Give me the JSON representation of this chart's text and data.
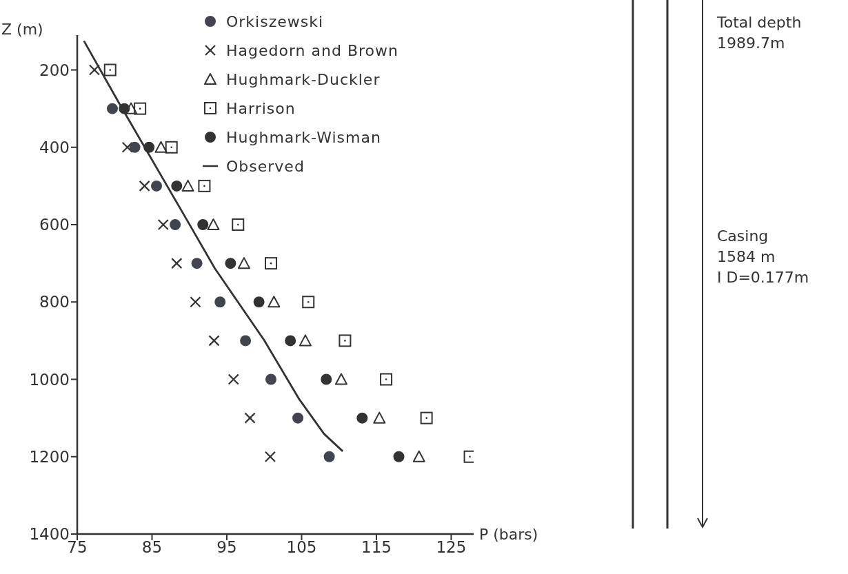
{
  "chart_data": {
    "type": "scatter",
    "xlabel": "P (bars)",
    "ylabel": "Z (m)",
    "xlim": [
      75,
      128
    ],
    "xticks": [
      75,
      85,
      95,
      105,
      115,
      125
    ],
    "ylim": [
      1400,
      110
    ],
    "yticks": [
      200,
      400,
      600,
      800,
      1000,
      1200,
      1400
    ],
    "legend": "top right",
    "series": [
      {
        "name": "Orkiszewski",
        "marker": "circle",
        "color": "#404550",
        "x": [
          79.7,
          82.7,
          85.6,
          88.1,
          91.0,
          94.1,
          97.5,
          100.9,
          104.5,
          108.7
        ],
        "values": [
          300,
          400,
          500,
          600,
          700,
          800,
          900,
          1000,
          1100,
          1200
        ]
      },
      {
        "name": "Hagedorn and Brown",
        "marker": "cross",
        "color": "#333333",
        "x": [
          77.3,
          81.7,
          84.0,
          86.5,
          88.3,
          90.8,
          93.3,
          95.9,
          98.1,
          100.8
        ],
        "values": [
          200,
          400,
          500,
          600,
          700,
          800,
          900,
          1000,
          1100,
          1200
        ]
      },
      {
        "name": "Hughmark-Duckler",
        "marker": "triangle",
        "color": "#333333",
        "x": [
          82.2,
          86.2,
          89.8,
          93.2,
          97.3,
          101.3,
          105.5,
          110.3,
          115.4,
          120.7
        ],
        "values": [
          300,
          400,
          500,
          600,
          700,
          800,
          900,
          1000,
          1100,
          1200
        ]
      },
      {
        "name": "Harrison",
        "marker": "square",
        "color": "#333333",
        "x": [
          79.4,
          83.4,
          87.6,
          92.0,
          96.5,
          100.9,
          105.9,
          110.8,
          116.3,
          121.7,
          127.5
        ],
        "values": [
          200,
          300,
          400,
          500,
          600,
          700,
          800,
          900,
          1000,
          1100,
          1200
        ]
      },
      {
        "name": "Hughmark-Wisman",
        "marker": "circle",
        "color": "#333333",
        "x": [
          81.3,
          84.6,
          88.3,
          91.8,
          95.5,
          99.3,
          103.5,
          108.3,
          113.1,
          118.0
        ],
        "values": [
          300,
          400,
          500,
          600,
          700,
          800,
          900,
          1000,
          1100,
          1200
        ]
      },
      {
        "name": "Observed",
        "type": "line",
        "marker": "none",
        "line_style": "solid",
        "color": "#333333",
        "x": [
          75.9,
          80.6,
          89.7,
          93.4,
          100.0,
          104.7,
          108.0,
          110.5
        ],
        "values": [
          125,
          286,
          589,
          713,
          899,
          1052,
          1141,
          1186
        ]
      }
    ],
    "annotations": [
      "Total depth\n1989.7m",
      "Casing\n1584 m\nI D=0.177m"
    ]
  }
}
